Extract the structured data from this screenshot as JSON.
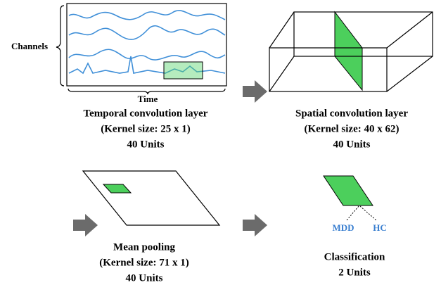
{
  "panels": [
    {
      "labels": [
        "Channels",
        "Time"
      ],
      "lines": [
        "Temporal convolution layer",
        "(Kernel size: 25 x 1)",
        "40 Units"
      ]
    },
    {
      "lines": [
        "Spatial convolution layer",
        "(Kernel size: 40 x 62)",
        "40 Units"
      ]
    },
    {
      "lines": [
        "Mean pooling",
        "(Kernel size: 71 x 1)",
        "40 Units"
      ]
    },
    {
      "labels": [
        "MDD",
        "HC"
      ],
      "lines": [
        "Classification",
        "2 Units"
      ]
    }
  ]
}
